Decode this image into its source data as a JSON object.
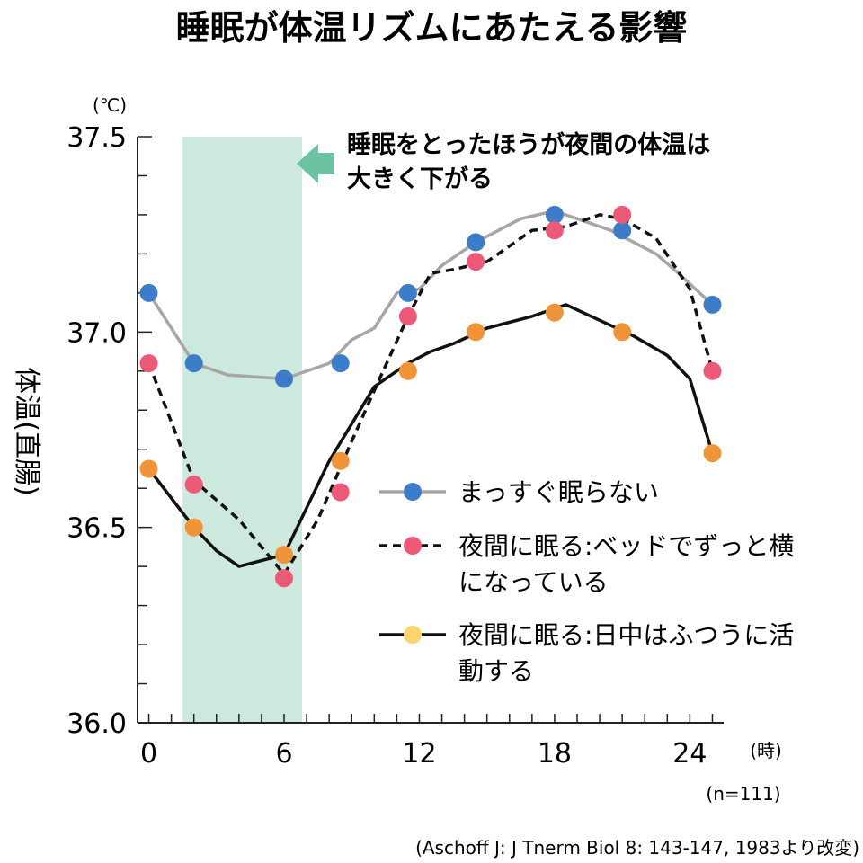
{
  "chart_data": {
    "type": "line",
    "title": "睡眠が体温リズムにあたえる影響",
    "ylabel": "体温(直腸)",
    "yunit": "(℃)",
    "xunit": "(時)",
    "sample_note": "(n=111)",
    "source": "(Aschoff J: J Tnerm Biol 8: 143-147, 1983より改変)",
    "xlim": [
      -0.5,
      25.5
    ],
    "ylim": [
      36.0,
      37.5
    ],
    "x_ticks": [
      0,
      6,
      12,
      18,
      24
    ],
    "x_tick_labels": [
      "0",
      "6",
      "12",
      "18",
      "24"
    ],
    "y_ticks": [
      36.0,
      36.5,
      37.0,
      37.5
    ],
    "y_tick_labels": [
      "36.0",
      "36.5",
      "37.0",
      "37.5"
    ],
    "sleep_band": [
      1.5,
      6.8
    ],
    "annotation": [
      "睡眠をとったほうが夜間の体温は",
      "大きく下がる"
    ],
    "grid": false,
    "legend_position": "right",
    "series": [
      {
        "name": "まっすぐ眠らない",
        "style": "solid",
        "line_color": "#a6a6a6",
        "marker_color": "#3d7cc9",
        "line": [
          [
            0,
            37.1
          ],
          [
            2,
            36.92
          ],
          [
            3.5,
            36.89
          ],
          [
            6,
            36.88
          ],
          [
            8,
            36.92
          ],
          [
            9,
            36.98
          ],
          [
            10,
            37.01
          ],
          [
            11,
            37.1
          ],
          [
            12,
            37.11
          ],
          [
            13,
            37.17
          ],
          [
            14.5,
            37.23
          ],
          [
            16.5,
            37.29
          ],
          [
            18,
            37.31
          ],
          [
            20.5,
            37.26
          ],
          [
            22.5,
            37.2
          ],
          [
            23.5,
            37.15
          ],
          [
            25,
            37.07
          ]
        ],
        "markers": [
          [
            0,
            37.1
          ],
          [
            2,
            36.92
          ],
          [
            6,
            36.88
          ],
          [
            8.5,
            36.92
          ],
          [
            11.5,
            37.1
          ],
          [
            14.5,
            37.23
          ],
          [
            18,
            37.3
          ],
          [
            21,
            37.26
          ],
          [
            25,
            37.07
          ]
        ]
      },
      {
        "name": "夜間に眠る:ベッドでずっと横になっている",
        "style": "dashed",
        "line_color": "#111111",
        "marker_color": "#ec5a78",
        "line": [
          [
            0,
            36.92
          ],
          [
            2,
            36.62
          ],
          [
            4,
            36.52
          ],
          [
            6,
            36.38
          ],
          [
            7.5,
            36.52
          ],
          [
            9,
            36.72
          ],
          [
            10,
            36.85
          ],
          [
            11.5,
            37.04
          ],
          [
            12.5,
            37.15
          ],
          [
            13.5,
            37.16
          ],
          [
            15,
            37.18
          ],
          [
            17,
            37.26
          ],
          [
            18.5,
            37.27
          ],
          [
            20,
            37.3
          ],
          [
            21,
            37.29
          ],
          [
            22.5,
            37.24
          ],
          [
            24,
            37.11
          ],
          [
            25,
            36.9
          ]
        ],
        "markers": [
          [
            0,
            36.92
          ],
          [
            2,
            36.61
          ],
          [
            6,
            36.37
          ],
          [
            8.5,
            36.59
          ],
          [
            11.5,
            37.04
          ],
          [
            14.5,
            37.18
          ],
          [
            18,
            37.26
          ],
          [
            21,
            37.3
          ],
          [
            25,
            36.9
          ]
        ]
      },
      {
        "name": "夜間に眠る:日中はふつうに活動する",
        "style": "solid",
        "line_color": "#111111",
        "marker_color": "#f0943a",
        "legend_marker_color": "#fdd46e",
        "line": [
          [
            0,
            36.65
          ],
          [
            2,
            36.5
          ],
          [
            3,
            36.44
          ],
          [
            4,
            36.4
          ],
          [
            6,
            36.43
          ],
          [
            8,
            36.67
          ],
          [
            10,
            36.86
          ],
          [
            11.5,
            36.92
          ],
          [
            12.5,
            36.95
          ],
          [
            13.5,
            36.97
          ],
          [
            15,
            37.01
          ],
          [
            17,
            37.04
          ],
          [
            18.5,
            37.07
          ],
          [
            20,
            37.03
          ],
          [
            21.5,
            36.99
          ],
          [
            23,
            36.94
          ],
          [
            24,
            36.88
          ],
          [
            25,
            36.69
          ]
        ],
        "markers": [
          [
            0,
            36.65
          ],
          [
            2,
            36.5
          ],
          [
            6,
            36.43
          ],
          [
            8.5,
            36.67
          ],
          [
            11.5,
            36.9
          ],
          [
            14.5,
            37.0
          ],
          [
            18,
            37.05
          ],
          [
            21,
            37.0
          ],
          [
            25,
            36.69
          ]
        ]
      }
    ]
  }
}
